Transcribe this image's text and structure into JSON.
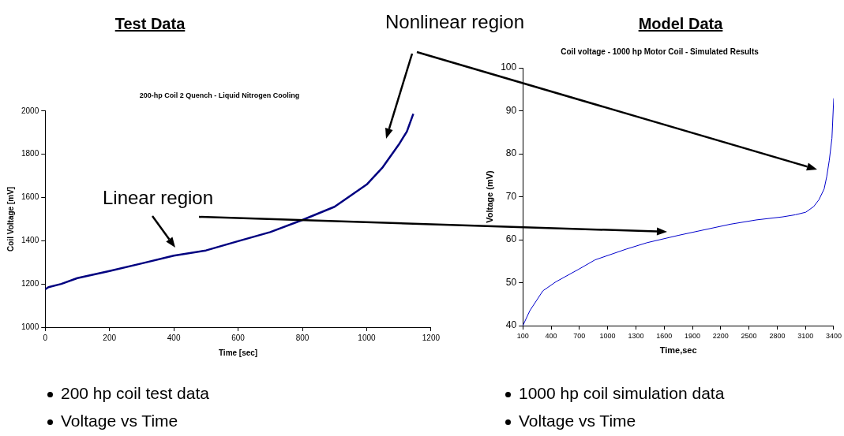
{
  "chart_data": [
    {
      "type": "line",
      "title": "200-hp Coil 2 Quench - Liquid Nitrogen Cooling",
      "xlabel": "Time [sec]",
      "ylabel": "Coil Voltage [mV]",
      "x": [
        0,
        10,
        50,
        100,
        200,
        300,
        400,
        500,
        600,
        700,
        800,
        900,
        1000,
        1050,
        1100,
        1125,
        1145
      ],
      "series": [
        {
          "color": "#000080",
          "values": [
            1175,
            1185,
            1200,
            1227,
            1260,
            1295,
            1331,
            1355,
            1398,
            1440,
            1496,
            1557,
            1660,
            1740,
            1845,
            1905,
            1987
          ]
        }
      ],
      "xlim": [
        0,
        1200
      ],
      "xticks": [
        0,
        200,
        400,
        600,
        800,
        1000,
        1200
      ],
      "ylim": [
        1000,
        2000
      ],
      "yticks": [
        1000,
        1200,
        1400,
        1600,
        1800,
        2000
      ],
      "grid": false,
      "marker": "none",
      "annotations": [
        "Test Data",
        "Nonlinear region",
        "Linear region",
        "200 hp coil test data",
        "Voltage vs Time"
      ]
    },
    {
      "type": "line",
      "title": "Coil voltage - 1000 hp Motor Coil - Simulated Results",
      "xlabel": "Time,sec",
      "ylabel": "Voltage (mV)",
      "x": [
        100,
        175,
        313,
        451,
        700,
        866,
        1197,
        1418,
        1750,
        2026,
        2303,
        2579,
        2855,
        2994,
        3104,
        3187,
        3243,
        3298,
        3326,
        3353,
        3381,
        3400
      ],
      "series": [
        {
          "color": "#0000cc",
          "values": [
            40,
            43.5,
            48.1,
            50.2,
            53.2,
            55.3,
            57.8,
            59.3,
            61.0,
            62.3,
            63.6,
            64.6,
            65.3,
            65.8,
            66.4,
            67.7,
            69.3,
            71.8,
            74.7,
            78.5,
            83.6,
            92.9
          ]
        }
      ],
      "xlim": [
        100,
        3400
      ],
      "xticks": [
        100,
        400,
        700,
        1000,
        1300,
        1600,
        1900,
        2200,
        2500,
        2800,
        3100,
        3400
      ],
      "ylim": [
        40,
        100
      ],
      "yticks": [
        40,
        50,
        60,
        70,
        80,
        90,
        100
      ],
      "grid": false,
      "marker": "none",
      "annotations": [
        "Model Data",
        "1000 hp coil simulation data",
        "Voltage vs Time"
      ]
    }
  ]
}
